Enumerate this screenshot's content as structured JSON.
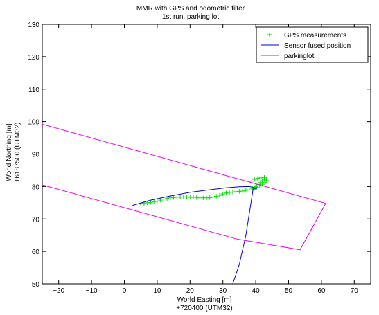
{
  "chart_data": {
    "type": "line",
    "title": "MMR with GPS and odometric filter",
    "subtitle": "1st run, parking lot",
    "xlabel": "World Easting [m]",
    "xlabel2": "+720400  (UTM32)",
    "ylabel": "World Northing [m]",
    "ylabel2": "+6187500  (UTM32)",
    "xlim": [
      -25,
      75
    ],
    "ylim": [
      50,
      130
    ],
    "xticks": [
      -20,
      -10,
      0,
      10,
      20,
      30,
      40,
      50,
      60,
      70
    ],
    "yticks": [
      50,
      60,
      70,
      80,
      90,
      100,
      110,
      120,
      130
    ],
    "grid": false,
    "legend_position": "top-right",
    "series": [
      {
        "name": "GPS measurements",
        "style": "markers",
        "marker": "+",
        "color": "#00dd00",
        "points": [
          [
            5,
            74.6
          ],
          [
            6,
            74.8
          ],
          [
            7,
            75.0
          ],
          [
            8,
            75.1
          ],
          [
            9,
            75.3
          ],
          [
            10,
            75.5
          ],
          [
            11,
            75.8
          ],
          [
            12,
            76.1
          ],
          [
            13,
            76.3
          ],
          [
            14,
            76.5
          ],
          [
            15,
            76.6
          ],
          [
            16,
            76.7
          ],
          [
            17,
            76.7
          ],
          [
            18,
            76.8
          ],
          [
            19,
            76.8
          ],
          [
            20,
            76.7
          ],
          [
            21,
            76.7
          ],
          [
            22,
            76.6
          ],
          [
            23,
            76.5
          ],
          [
            24,
            76.5
          ],
          [
            25,
            76.5
          ],
          [
            26,
            76.6
          ],
          [
            27,
            76.7
          ],
          [
            28,
            77.0
          ],
          [
            29,
            77.3
          ],
          [
            30,
            77.7
          ],
          [
            31,
            78.0
          ],
          [
            32,
            78.2
          ],
          [
            33,
            78.3
          ],
          [
            34,
            78.4
          ],
          [
            35,
            78.5
          ],
          [
            36,
            78.6
          ],
          [
            37,
            78.8
          ],
          [
            38,
            79.0
          ],
          [
            39,
            79.4
          ],
          [
            40,
            80.0
          ],
          [
            40.7,
            80.6
          ],
          [
            41.4,
            81.2
          ],
          [
            42,
            81.8
          ],
          [
            42.6,
            82.2
          ],
          [
            43.2,
            82.3
          ],
          [
            43.4,
            81.8
          ],
          [
            42.8,
            81.2
          ],
          [
            42.0,
            80.7
          ],
          [
            41.2,
            80.2
          ],
          [
            40.3,
            79.8
          ],
          [
            39.5,
            79.3
          ],
          [
            38.8,
            81.6
          ],
          [
            39.6,
            82.2
          ],
          [
            40.6,
            82.5
          ],
          [
            41.6,
            82.7
          ],
          [
            42.6,
            82.8
          ]
        ]
      },
      {
        "name": "Sensor fused position",
        "style": "line",
        "color": "#0000cc",
        "points": [
          [
            2.5,
            74.2
          ],
          [
            8,
            75.8
          ],
          [
            14,
            77.1
          ],
          [
            20,
            78.2
          ],
          [
            26,
            79.0
          ],
          [
            31,
            79.6
          ],
          [
            35,
            79.9
          ],
          [
            38,
            80.0
          ],
          [
            39.5,
            79.7
          ],
          [
            40.2,
            79.3
          ],
          [
            39.2,
            79.2
          ],
          [
            37,
            65
          ],
          [
            35,
            56
          ],
          [
            33,
            50
          ]
        ]
      },
      {
        "name": "parkinglot",
        "style": "line",
        "color": "#ee00ee",
        "points": [
          [
            -25,
            99.2
          ],
          [
            61.3,
            74.8
          ],
          [
            53.5,
            60.5
          ],
          [
            34.3,
            63.8
          ],
          [
            -25,
            80.5
          ]
        ]
      }
    ]
  }
}
